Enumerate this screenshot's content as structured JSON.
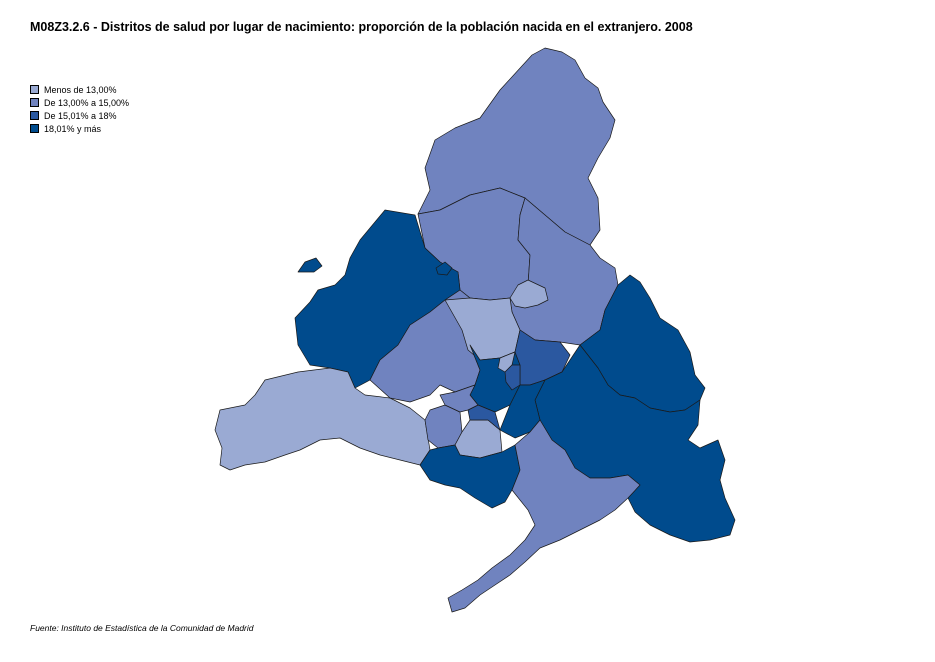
{
  "title": "M08Z3.2.6 - Distritos de salud por lugar de nacimiento: proporción de la población nacida en el extranjero. 2008",
  "legend": [
    {
      "label": "Menos de 13,00%",
      "color": "#9aaad3"
    },
    {
      "label": "De 13,00% a 15,00%",
      "color": "#7083bf"
    },
    {
      "label": "De 15,01% a 18%",
      "color": "#2b58a0"
    },
    {
      "label": "18,01% y más",
      "color": "#004b8d"
    }
  ],
  "source": "Fuente: Instituto de Estadística de la Comunidad de Madrid"
}
